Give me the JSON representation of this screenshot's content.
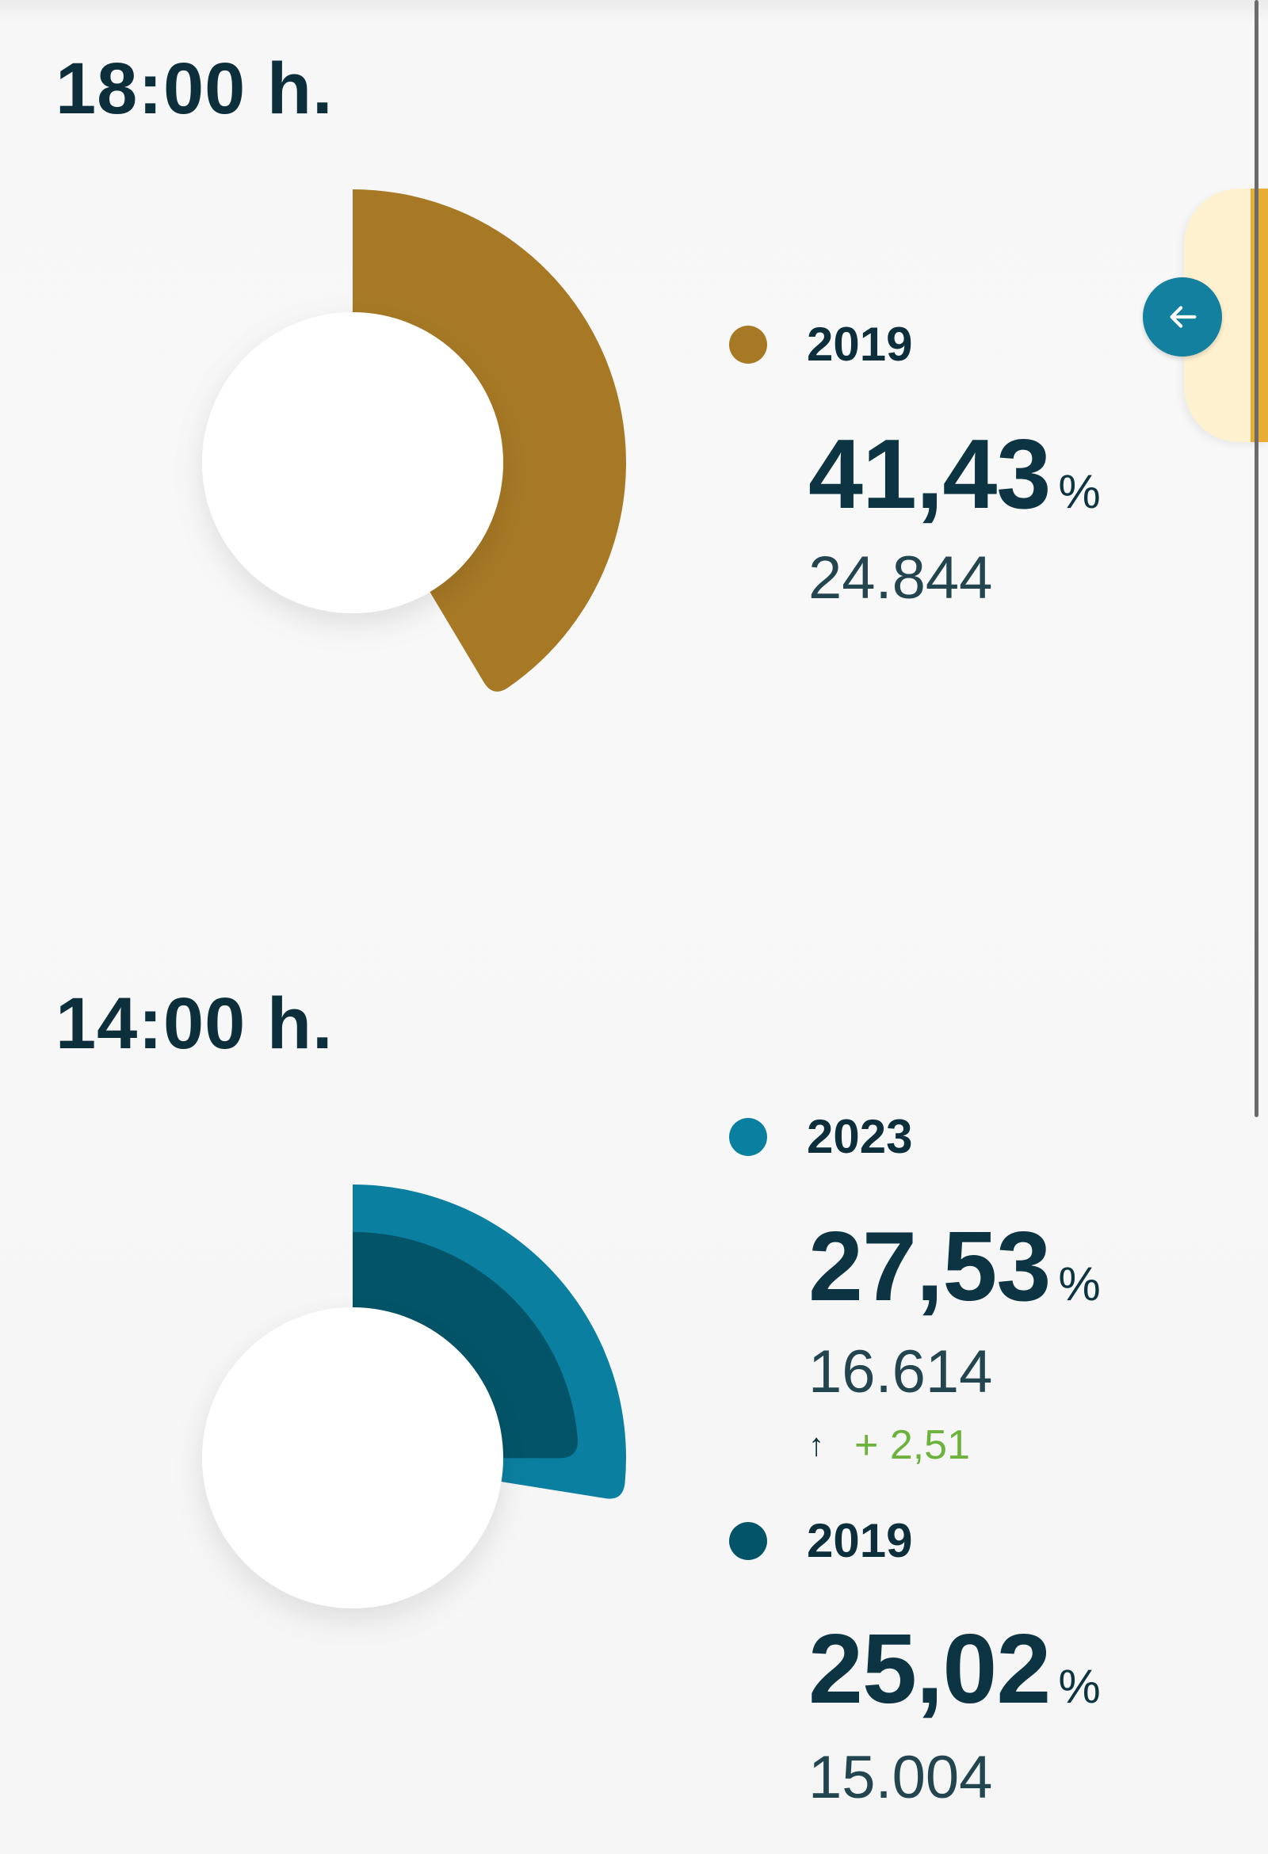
{
  "colors": {
    "gold": "#a77925",
    "teal": "#0b7fa0",
    "navy": "#035468",
    "increase_green": "#6db23c"
  },
  "sections": [
    {
      "time_label": "18:00 h.",
      "entries": [
        {
          "year": "2019",
          "percent": "41,43",
          "unit": "%",
          "count": "24.844",
          "color": "gold"
        }
      ]
    },
    {
      "time_label": "14:00 h.",
      "entries": [
        {
          "year": "2023",
          "percent": "27,53",
          "unit": "%",
          "count": "16.614",
          "change": "+ 2,51",
          "change_direction": "up",
          "color": "teal"
        },
        {
          "year": "2019",
          "percent": "25,02",
          "unit": "%",
          "count": "15.004",
          "color": "navy"
        }
      ]
    }
  ],
  "chart_data": [
    {
      "type": "pie",
      "series": [
        {
          "name": "2019",
          "values": [
            41.43
          ]
        }
      ]
    },
    {
      "type": "pie",
      "series": [
        {
          "name": "2023",
          "values": [
            27.53
          ]
        },
        {
          "name": "2019",
          "values": [
            25.02
          ]
        }
      ]
    }
  ],
  "controls": {
    "back_button_icon": "arrow-left-icon"
  }
}
